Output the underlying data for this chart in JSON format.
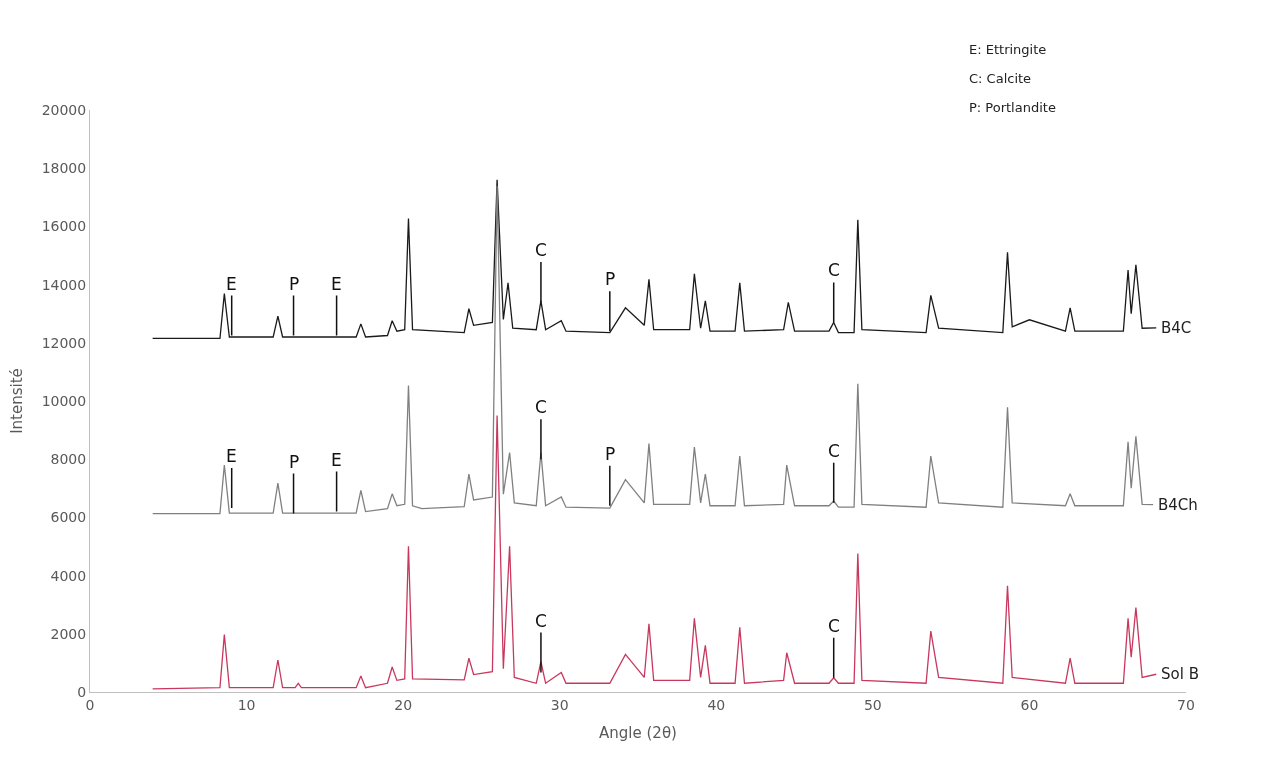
{
  "chart_data": {
    "type": "line",
    "xlabel": "Angle (2θ)",
    "ylabel": "Intensité",
    "xlim": [
      0,
      70
    ],
    "xticks": [
      0,
      10,
      20,
      30,
      40,
      50,
      60,
      70
    ],
    "ylim": [
      0,
      20000
    ],
    "yticks": [
      0,
      2000,
      4000,
      6000,
      8000,
      10000,
      12000,
      14000,
      16000,
      18000,
      20000
    ],
    "grid": false,
    "legend": false,
    "marker": "none",
    "line_style": "solid",
    "series": [
      {
        "name": "B4C",
        "color": "#1a1a1a",
        "x": [
          4,
          8.3,
          8.58,
          8.9,
          11.7,
          12.0,
          12.3,
          17.0,
          17.3,
          17.6,
          19.0,
          19.3,
          19.6,
          20.1,
          20.34,
          20.6,
          23.9,
          24.2,
          24.5,
          25.7,
          26.0,
          26.4,
          26.7,
          27.0,
          28.5,
          28.8,
          29.1,
          30.1,
          30.4,
          33.2,
          34.2,
          35.4,
          35.7,
          36.0,
          38.3,
          38.6,
          39.0,
          39.3,
          39.6,
          41.2,
          41.5,
          41.8,
          44.3,
          44.6,
          45.0,
          47.2,
          47.5,
          47.8,
          48.8,
          49.04,
          49.3,
          53.4,
          53.7,
          54.2,
          58.3,
          58.6,
          58.9,
          60.0,
          62.3,
          62.6,
          62.9,
          66.0,
          66.3,
          66.5,
          66.8,
          67.2,
          68.1
        ],
        "values": [
          12150,
          12150,
          13690,
          12200,
          12200,
          12920,
          12200,
          12200,
          12650,
          12200,
          12250,
          12760,
          12400,
          12450,
          16270,
          12450,
          12350,
          13170,
          12600,
          12700,
          17600,
          12800,
          14060,
          12500,
          12450,
          13440,
          12450,
          12760,
          12400,
          12350,
          13200,
          12600,
          14180,
          12450,
          12450,
          14370,
          12500,
          13440,
          12400,
          12400,
          14060,
          12400,
          12450,
          13390,
          12400,
          12400,
          12700,
          12350,
          12350,
          16230,
          12450,
          12350,
          13630,
          12500,
          12350,
          15110,
          12550,
          12790,
          12400,
          13200,
          12400,
          12400,
          14500,
          13000,
          14680,
          12500,
          12510
        ]
      },
      {
        "name": "B4Ch",
        "color": "#808080",
        "x": [
          4,
          8.3,
          8.58,
          8.9,
          11.7,
          12.0,
          12.3,
          17.0,
          17.3,
          17.6,
          19.0,
          19.3,
          19.6,
          20.1,
          20.34,
          20.6,
          21.2,
          23.9,
          24.2,
          24.5,
          25.7,
          26.0,
          26.4,
          26.8,
          27.1,
          28.5,
          28.8,
          29.1,
          30.1,
          30.4,
          33.2,
          34.2,
          35.4,
          35.7,
          36.0,
          38.3,
          38.6,
          39.0,
          39.3,
          39.6,
          41.2,
          41.5,
          41.8,
          44.3,
          44.5,
          45.0,
          47.2,
          47.5,
          47.8,
          48.8,
          49.04,
          49.3,
          53.4,
          53.7,
          54.2,
          58.3,
          58.6,
          58.9,
          62.3,
          62.6,
          62.9,
          66.0,
          66.3,
          66.5,
          66.8,
          67.2,
          67.9
        ],
        "values": [
          6130,
          6130,
          7800,
          6150,
          6150,
          7180,
          6150,
          6150,
          6930,
          6200,
          6300,
          6810,
          6400,
          6450,
          10530,
          6400,
          6300,
          6370,
          7490,
          6600,
          6700,
          17400,
          6800,
          8230,
          6500,
          6400,
          8230,
          6400,
          6700,
          6350,
          6320,
          7300,
          6500,
          8540,
          6450,
          6450,
          8420,
          6500,
          7490,
          6400,
          6400,
          8110,
          6400,
          6450,
          7800,
          6400,
          6400,
          6560,
          6350,
          6350,
          10590,
          6450,
          6350,
          8110,
          6500,
          6350,
          9780,
          6500,
          6400,
          6810,
          6400,
          6400,
          8600,
          7000,
          8790,
          6450,
          6440
        ]
      },
      {
        "name": "Sol B",
        "color": "#c8385e",
        "x": [
          4,
          8.3,
          8.58,
          8.9,
          11.7,
          12.0,
          12.3,
          13.1,
          13.3,
          13.5,
          17.0,
          17.3,
          17.6,
          19.0,
          19.3,
          19.6,
          20.1,
          20.34,
          20.6,
          23.9,
          24.2,
          24.5,
          25.7,
          26.0,
          26.4,
          26.8,
          27.1,
          28.5,
          28.8,
          29.1,
          30.1,
          30.4,
          33.2,
          34.2,
          35.4,
          35.7,
          36.0,
          38.3,
          38.6,
          39.0,
          39.3,
          39.6,
          41.2,
          41.5,
          41.8,
          44.3,
          44.5,
          45.0,
          47.2,
          47.5,
          47.8,
          48.8,
          49.04,
          49.3,
          53.4,
          53.7,
          54.2,
          58.3,
          58.6,
          58.9,
          62.3,
          62.6,
          62.9,
          66.0,
          66.3,
          66.5,
          66.8,
          67.2,
          68.1
        ],
        "values": [
          110,
          150,
          1970,
          150,
          150,
          1100,
          150,
          150,
          300,
          150,
          150,
          550,
          150,
          300,
          860,
          400,
          450,
          5010,
          450,
          420,
          1160,
          600,
          700,
          9500,
          800,
          5010,
          500,
          300,
          1040,
          300,
          670,
          300,
          300,
          1290,
          500,
          2340,
          400,
          400,
          2530,
          500,
          1600,
          300,
          300,
          2220,
          300,
          400,
          1350,
          300,
          300,
          490,
          300,
          300,
          4760,
          400,
          300,
          2090,
          500,
          300,
          3650,
          500,
          300,
          1160,
          300,
          300,
          2530,
          1200,
          2900,
          500,
          610
        ]
      }
    ],
    "annotations": [
      {
        "text": "E",
        "x": 9.05,
        "y": 12250
      },
      {
        "text": "P",
        "x": 13.0,
        "y": 12250
      },
      {
        "text": "E",
        "x": 15.75,
        "y": 12250
      },
      {
        "text": "C",
        "x": 28.8,
        "y": 13400
      },
      {
        "text": "P",
        "x": 33.2,
        "y": 12400
      },
      {
        "text": "C",
        "x": 47.5,
        "y": 12700
      },
      {
        "text": "E",
        "x": 9.05,
        "y": 6320
      },
      {
        "text": "P",
        "x": 13.0,
        "y": 6130
      },
      {
        "text": "E",
        "x": 15.75,
        "y": 6200
      },
      {
        "text": "C",
        "x": 28.8,
        "y": 8000
      },
      {
        "text": "P",
        "x": 33.2,
        "y": 6400
      },
      {
        "text": "C",
        "x": 47.5,
        "y": 6500
      },
      {
        "text": "C",
        "x": 28.8,
        "y": 670
      },
      {
        "text": "C",
        "x": 47.5,
        "y": 490
      },
      "E: Ettringite",
      "C: Calcite",
      "P: Portlandite"
    ]
  }
}
